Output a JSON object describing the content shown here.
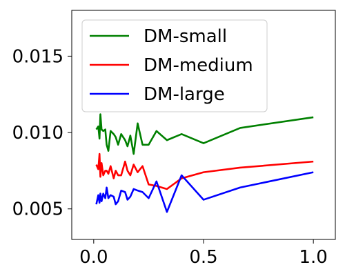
{
  "chart_data": {
    "type": "line",
    "title": "",
    "xlabel": "",
    "ylabel": "",
    "xlim": [
      -0.1,
      1.1
    ],
    "ylim": [
      0.003,
      0.018
    ],
    "xticks": [
      0.0,
      0.5,
      1.0
    ],
    "xtick_labels": [
      "0.0",
      "0.5",
      "1.0"
    ],
    "yticks": [
      0.005,
      0.01,
      0.015
    ],
    "ytick_labels": [
      "0.005",
      "0.010",
      "0.015"
    ],
    "grid": false,
    "legend_placement": "top-left",
    "series": [
      {
        "name": "DM-small",
        "color": "#008000",
        "points": [
          [
            0.0118,
            0.0102
          ],
          [
            0.0208,
            0.0104
          ],
          [
            0.0263,
            0.0096
          ],
          [
            0.0303,
            0.0112
          ],
          [
            0.0357,
            0.0102
          ],
          [
            0.0435,
            0.0101
          ],
          [
            0.0526,
            0.0102
          ],
          [
            0.0588,
            0.0092
          ],
          [
            0.0667,
            0.0088
          ],
          [
            0.0769,
            0.0101
          ],
          [
            0.0909,
            0.0099
          ],
          [
            0.1,
            0.0097
          ],
          [
            0.1111,
            0.0092
          ],
          [
            0.125,
            0.0099
          ],
          [
            0.1429,
            0.0095
          ],
          [
            0.1538,
            0.0091
          ],
          [
            0.1667,
            0.0098
          ],
          [
            0.1818,
            0.0086
          ],
          [
            0.2,
            0.0106
          ],
          [
            0.2222,
            0.0092
          ],
          [
            0.25,
            0.0092
          ],
          [
            0.2857,
            0.0101
          ],
          [
            0.3333,
            0.0095
          ],
          [
            0.4,
            0.0099
          ],
          [
            0.5,
            0.0093
          ],
          [
            0.6667,
            0.0103
          ],
          [
            1.0,
            0.011
          ]
        ]
      },
      {
        "name": "DM-medium",
        "color": "#ff0000",
        "points": [
          [
            0.0118,
            0.0079
          ],
          [
            0.0208,
            0.0076
          ],
          [
            0.0263,
            0.0086
          ],
          [
            0.0303,
            0.0071
          ],
          [
            0.0357,
            0.008
          ],
          [
            0.0435,
            0.0072
          ],
          [
            0.0526,
            0.0075
          ],
          [
            0.0588,
            0.0075
          ],
          [
            0.0667,
            0.0073
          ],
          [
            0.0769,
            0.0078
          ],
          [
            0.0909,
            0.007
          ],
          [
            0.1,
            0.0075
          ],
          [
            0.1111,
            0.0072
          ],
          [
            0.125,
            0.0072
          ],
          [
            0.1429,
            0.0081
          ],
          [
            0.1538,
            0.0075
          ],
          [
            0.1667,
            0.0072
          ],
          [
            0.1818,
            0.0079
          ],
          [
            0.2,
            0.0074
          ],
          [
            0.2222,
            0.0078
          ],
          [
            0.25,
            0.0066
          ],
          [
            0.2857,
            0.0065
          ],
          [
            0.3333,
            0.0063
          ],
          [
            0.4,
            0.007
          ],
          [
            0.5,
            0.0074
          ],
          [
            0.6667,
            0.0077
          ],
          [
            1.0,
            0.0081
          ]
        ]
      },
      {
        "name": "DM-large",
        "color": "#0000ff",
        "points": [
          [
            0.0118,
            0.0053
          ],
          [
            0.0208,
            0.0059
          ],
          [
            0.0263,
            0.0054
          ],
          [
            0.0303,
            0.006
          ],
          [
            0.0357,
            0.0055
          ],
          [
            0.0435,
            0.006
          ],
          [
            0.0526,
            0.0057
          ],
          [
            0.0588,
            0.0064
          ],
          [
            0.0667,
            0.0057
          ],
          [
            0.0769,
            0.0059
          ],
          [
            0.0909,
            0.0058
          ],
          [
            0.1,
            0.0053
          ],
          [
            0.1111,
            0.0055
          ],
          [
            0.125,
            0.0062
          ],
          [
            0.1429,
            0.0061
          ],
          [
            0.1538,
            0.0056
          ],
          [
            0.1667,
            0.0058
          ],
          [
            0.1818,
            0.0063
          ],
          [
            0.2,
            0.0062
          ],
          [
            0.2222,
            0.0061
          ],
          [
            0.25,
            0.0057
          ],
          [
            0.2857,
            0.0068
          ],
          [
            0.3333,
            0.0048
          ],
          [
            0.4,
            0.0072
          ],
          [
            0.5,
            0.0056
          ],
          [
            0.6667,
            0.0064
          ],
          [
            1.0,
            0.0074
          ]
        ]
      }
    ]
  }
}
